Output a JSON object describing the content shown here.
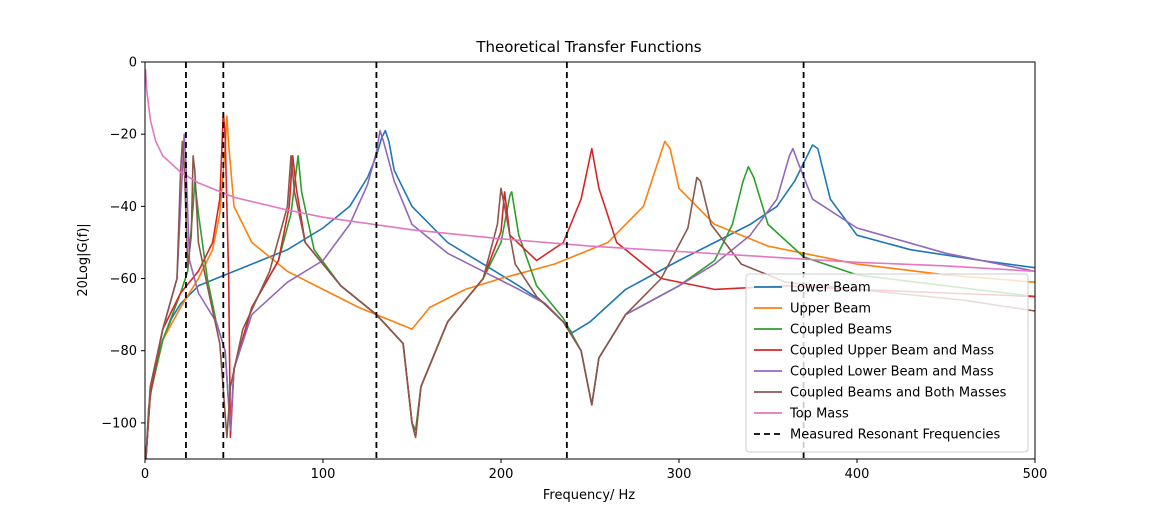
{
  "chart_data": {
    "type": "line",
    "title": "Theoretical Transfer Functions",
    "xlabel": "Frequency/ Hz",
    "ylabel": "20Log|G(f)|",
    "xlim": [
      0,
      500
    ],
    "ylim": [
      -110,
      0
    ],
    "xticks": [
      0,
      100,
      200,
      300,
      400,
      500
    ],
    "yticks": [
      0,
      -20,
      -40,
      -60,
      -80,
      -100
    ],
    "grid": false,
    "legend_position": "lower-right",
    "series": [
      {
        "name": "Lower Beam",
        "color": "#1f77b4",
        "dash": "",
        "points": [
          [
            0.5,
            -110
          ],
          [
            2,
            -96
          ],
          [
            5,
            -86
          ],
          [
            10,
            -77
          ],
          [
            15,
            -71
          ],
          [
            20,
            -67
          ],
          [
            30,
            -62
          ],
          [
            40,
            -60
          ],
          [
            60,
            -56
          ],
          [
            80,
            -52
          ],
          [
            100,
            -46
          ],
          [
            115,
            -40
          ],
          [
            125,
            -32
          ],
          [
            130,
            -26
          ],
          [
            133,
            -21
          ],
          [
            135,
            -19
          ],
          [
            137,
            -22
          ],
          [
            140,
            -30
          ],
          [
            150,
            -40
          ],
          [
            170,
            -50
          ],
          [
            190,
            -56
          ],
          [
            210,
            -62
          ],
          [
            225,
            -67
          ],
          [
            235,
            -72
          ],
          [
            240,
            -75
          ],
          [
            250,
            -72
          ],
          [
            270,
            -63
          ],
          [
            300,
            -55
          ],
          [
            320,
            -50
          ],
          [
            340,
            -45
          ],
          [
            355,
            -40
          ],
          [
            365,
            -33
          ],
          [
            372,
            -26
          ],
          [
            375,
            -23
          ],
          [
            378,
            -24
          ],
          [
            385,
            -38
          ],
          [
            400,
            -48
          ],
          [
            430,
            -52
          ],
          [
            470,
            -55
          ],
          [
            500,
            -57
          ]
        ]
      },
      {
        "name": "Upper Beam",
        "color": "#ff7f0e",
        "dash": "",
        "points": [
          [
            0.5,
            -110
          ],
          [
            3,
            -92
          ],
          [
            10,
            -77
          ],
          [
            20,
            -68
          ],
          [
            30,
            -60
          ],
          [
            38,
            -52
          ],
          [
            42,
            -42
          ],
          [
            45,
            -24
          ],
          [
            46,
            -15
          ],
          [
            47,
            -23
          ],
          [
            50,
            -40
          ],
          [
            60,
            -50
          ],
          [
            80,
            -58
          ],
          [
            100,
            -63
          ],
          [
            120,
            -68
          ],
          [
            140,
            -72
          ],
          [
            150,
            -74
          ],
          [
            155,
            -71
          ],
          [
            160,
            -68
          ],
          [
            180,
            -63
          ],
          [
            200,
            -60
          ],
          [
            230,
            -56
          ],
          [
            260,
            -50
          ],
          [
            280,
            -40
          ],
          [
            288,
            -28
          ],
          [
            292,
            -22
          ],
          [
            295,
            -24
          ],
          [
            300,
            -35
          ],
          [
            320,
            -45
          ],
          [
            350,
            -51
          ],
          [
            400,
            -56
          ],
          [
            450,
            -59
          ],
          [
            500,
            -61
          ]
        ]
      },
      {
        "name": "Coupled Beams",
        "color": "#2ca02c",
        "dash": "",
        "points": [
          [
            0.5,
            -110
          ],
          [
            3,
            -92
          ],
          [
            10,
            -77
          ],
          [
            20,
            -64
          ],
          [
            24,
            -58
          ],
          [
            27,
            -40
          ],
          [
            28,
            -33
          ],
          [
            30,
            -42
          ],
          [
            35,
            -60
          ],
          [
            40,
            -72
          ],
          [
            45,
            -80
          ],
          [
            48,
            -102
          ],
          [
            50,
            -85
          ],
          [
            60,
            -68
          ],
          [
            75,
            -55
          ],
          [
            82,
            -42
          ],
          [
            86,
            -26
          ],
          [
            88,
            -36
          ],
          [
            95,
            -52
          ],
          [
            110,
            -62
          ],
          [
            130,
            -70
          ],
          [
            145,
            -78
          ],
          [
            150,
            -100
          ],
          [
            152,
            -102
          ],
          [
            155,
            -90
          ],
          [
            170,
            -72
          ],
          [
            190,
            -60
          ],
          [
            200,
            -50
          ],
          [
            205,
            -37
          ],
          [
            206,
            -36
          ],
          [
            210,
            -48
          ],
          [
            220,
            -62
          ],
          [
            235,
            -71
          ],
          [
            245,
            -80
          ],
          [
            251,
            -95
          ],
          [
            255,
            -82
          ],
          [
            270,
            -70
          ],
          [
            300,
            -62
          ],
          [
            320,
            -55
          ],
          [
            330,
            -45
          ],
          [
            336,
            -33
          ],
          [
            339,
            -29
          ],
          [
            342,
            -32
          ],
          [
            350,
            -45
          ],
          [
            370,
            -54
          ],
          [
            400,
            -59
          ],
          [
            450,
            -62
          ],
          [
            500,
            -65
          ]
        ]
      },
      {
        "name": "Coupled Upper Beam and Mass",
        "color": "#d62728",
        "dash": "",
        "points": [
          [
            0.5,
            -110
          ],
          [
            3,
            -92
          ],
          [
            10,
            -74
          ],
          [
            20,
            -64
          ],
          [
            30,
            -58
          ],
          [
            38,
            -50
          ],
          [
            42,
            -38
          ],
          [
            44,
            -14
          ],
          [
            45,
            -20
          ],
          [
            47,
            -60
          ],
          [
            48,
            -104
          ],
          [
            50,
            -85
          ],
          [
            60,
            -68
          ],
          [
            75,
            -55
          ],
          [
            81,
            -40
          ],
          [
            83,
            -26
          ],
          [
            85,
            -35
          ],
          [
            90,
            -50
          ],
          [
            110,
            -62
          ],
          [
            130,
            -70
          ],
          [
            145,
            -78
          ],
          [
            150,
            -100
          ],
          [
            152,
            -104
          ],
          [
            155,
            -90
          ],
          [
            170,
            -72
          ],
          [
            190,
            -60
          ],
          [
            200,
            -47
          ],
          [
            202,
            -36
          ],
          [
            205,
            -48
          ],
          [
            220,
            -55
          ],
          [
            235,
            -50
          ],
          [
            245,
            -38
          ],
          [
            251,
            -24
          ],
          [
            255,
            -35
          ],
          [
            265,
            -50
          ],
          [
            290,
            -60
          ],
          [
            320,
            -63
          ],
          [
            360,
            -62
          ],
          [
            400,
            -63
          ],
          [
            450,
            -64
          ],
          [
            500,
            -65
          ]
        ]
      },
      {
        "name": "Coupled Lower Beam and Mass",
        "color": "#9467bd",
        "dash": "",
        "points": [
          [
            0.5,
            -110
          ],
          [
            3,
            -90
          ],
          [
            10,
            -74
          ],
          [
            18,
            -60
          ],
          [
            21,
            -30
          ],
          [
            22,
            -20
          ],
          [
            23,
            -28
          ],
          [
            25,
            -55
          ],
          [
            30,
            -64
          ],
          [
            40,
            -72
          ],
          [
            45,
            -80
          ],
          [
            48,
            -102
          ],
          [
            50,
            -85
          ],
          [
            60,
            -70
          ],
          [
            80,
            -61
          ],
          [
            100,
            -55
          ],
          [
            115,
            -45
          ],
          [
            125,
            -34
          ],
          [
            130,
            -25
          ],
          [
            132,
            -19
          ],
          [
            134,
            -22
          ],
          [
            140,
            -33
          ],
          [
            150,
            -45
          ],
          [
            170,
            -53
          ],
          [
            190,
            -58
          ],
          [
            210,
            -63
          ],
          [
            225,
            -67
          ],
          [
            235,
            -72
          ],
          [
            245,
            -80
          ],
          [
            251,
            -95
          ],
          [
            255,
            -82
          ],
          [
            270,
            -70
          ],
          [
            300,
            -62
          ],
          [
            320,
            -56
          ],
          [
            340,
            -48
          ],
          [
            355,
            -38
          ],
          [
            362,
            -26
          ],
          [
            364,
            -24
          ],
          [
            367,
            -28
          ],
          [
            375,
            -38
          ],
          [
            400,
            -46
          ],
          [
            450,
            -53
          ],
          [
            500,
            -58
          ]
        ]
      },
      {
        "name": "Coupled Beams and Both Masses",
        "color": "#8c564b",
        "dash": "",
        "points": [
          [
            0.5,
            -110
          ],
          [
            3,
            -90
          ],
          [
            10,
            -74
          ],
          [
            18,
            -60
          ],
          [
            20,
            -30
          ],
          [
            21,
            -22
          ],
          [
            22,
            -28
          ],
          [
            24,
            -57
          ],
          [
            26,
            -48
          ],
          [
            27,
            -26
          ],
          [
            28,
            -30
          ],
          [
            30,
            -50
          ],
          [
            35,
            -62
          ],
          [
            42,
            -78
          ],
          [
            46,
            -104
          ],
          [
            48,
            -90
          ],
          [
            55,
            -74
          ],
          [
            70,
            -58
          ],
          [
            80,
            -40
          ],
          [
            82,
            -26
          ],
          [
            84,
            -36
          ],
          [
            90,
            -50
          ],
          [
            110,
            -62
          ],
          [
            130,
            -70
          ],
          [
            145,
            -78
          ],
          [
            150,
            -100
          ],
          [
            152,
            -104
          ],
          [
            155,
            -90
          ],
          [
            170,
            -72
          ],
          [
            190,
            -60
          ],
          [
            198,
            -45
          ],
          [
            200,
            -35
          ],
          [
            202,
            -40
          ],
          [
            208,
            -56
          ],
          [
            220,
            -65
          ],
          [
            235,
            -72
          ],
          [
            245,
            -80
          ],
          [
            251,
            -95
          ],
          [
            255,
            -82
          ],
          [
            270,
            -70
          ],
          [
            290,
            -60
          ],
          [
            305,
            -46
          ],
          [
            310,
            -32
          ],
          [
            312,
            -33
          ],
          [
            318,
            -45
          ],
          [
            335,
            -56
          ],
          [
            360,
            -61
          ],
          [
            380,
            -62
          ],
          [
            420,
            -64
          ],
          [
            460,
            -66
          ],
          [
            500,
            -69
          ]
        ]
      },
      {
        "name": "Top Mass",
        "color": "#e377c2",
        "dash": "",
        "points": [
          [
            0.3,
            -2
          ],
          [
            1,
            -8
          ],
          [
            3,
            -16
          ],
          [
            6,
            -22
          ],
          [
            10,
            -26
          ],
          [
            20,
            -30.5
          ],
          [
            30,
            -33.5
          ],
          [
            50,
            -37.5
          ],
          [
            80,
            -41
          ],
          [
            100,
            -43
          ],
          [
            150,
            -46.5
          ],
          [
            200,
            -49
          ],
          [
            250,
            -51
          ],
          [
            300,
            -52.5
          ],
          [
            350,
            -54
          ],
          [
            400,
            -55.5
          ],
          [
            450,
            -56.5
          ],
          [
            500,
            -58
          ]
        ]
      },
      {
        "name": "Measured Resonant Frequencies",
        "color": "#000000",
        "dash": "6,4",
        "vlines": [
          23,
          44,
          130,
          237,
          370
        ]
      }
    ]
  }
}
